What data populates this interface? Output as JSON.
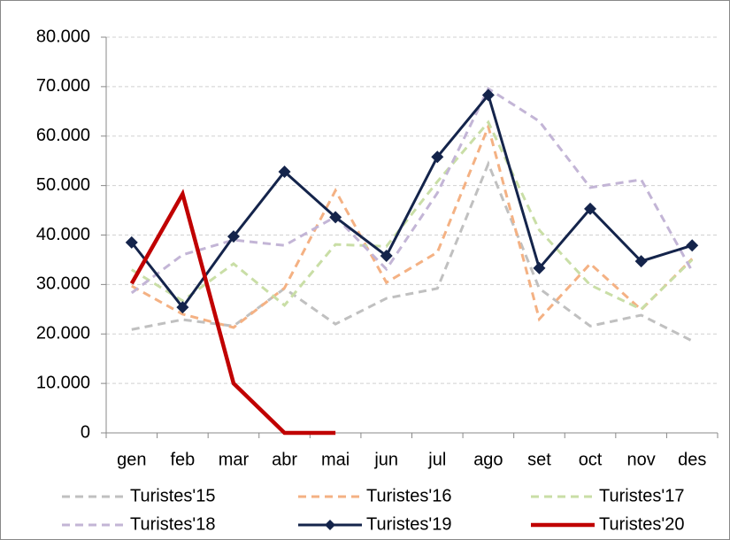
{
  "chart_data": {
    "type": "line",
    "categories": [
      "gen",
      "feb",
      "mar",
      "abr",
      "mai",
      "jun",
      "jul",
      "ago",
      "set",
      "oct",
      "nov",
      "des"
    ],
    "series": [
      {
        "name": "Turistes'15",
        "color": "#c0c0c0",
        "dash": true,
        "values": [
          20900,
          22900,
          21600,
          29200,
          22000,
          27200,
          29200,
          54400,
          29200,
          21600,
          23800,
          18600
        ]
      },
      {
        "name": "Turistes'16",
        "color": "#f4b183",
        "dash": true,
        "values": [
          29700,
          24000,
          21300,
          29300,
          49000,
          30400,
          36500,
          61900,
          23000,
          34200,
          24900,
          35200
        ]
      },
      {
        "name": "Turistes'17",
        "color": "#c9dea6",
        "dash": true,
        "values": [
          33000,
          26700,
          34200,
          25800,
          38100,
          37700,
          50800,
          62800,
          41000,
          29900,
          25000,
          35000
        ]
      },
      {
        "name": "Turistes'18",
        "color": "#c3b5d6",
        "dash": true,
        "values": [
          28300,
          36000,
          39000,
          37900,
          43700,
          33100,
          48500,
          69600,
          63000,
          49600,
          51200,
          32700
        ]
      },
      {
        "name": "Turistes'19",
        "color": "#14244b",
        "markers": true,
        "values": [
          38500,
          25400,
          39700,
          52800,
          43600,
          35800,
          55800,
          68300,
          33300,
          45300,
          34700,
          37900
        ]
      },
      {
        "name": "Turistes'20",
        "color": "#c00000",
        "values": [
          30200,
          48300,
          10000,
          0,
          0,
          null,
          null,
          null,
          null,
          null,
          null,
          null
        ]
      }
    ],
    "ylim": [
      0,
      80000
    ],
    "yticks": [
      0,
      {
        "value": 10000,
        "label": "10.000"
      },
      {
        "value": 20000,
        "label": "20.000"
      },
      {
        "value": 30000,
        "label": "30.000"
      },
      {
        "value": 40000,
        "label": "40.000"
      },
      {
        "value": 50000,
        "label": "50.000"
      },
      {
        "value": 60000,
        "label": "60.000"
      },
      {
        "value": 70000,
        "label": "70.000"
      },
      {
        "value": 80000,
        "label": "80.000"
      }
    ],
    "grid": true,
    "legend": "bottom"
  }
}
